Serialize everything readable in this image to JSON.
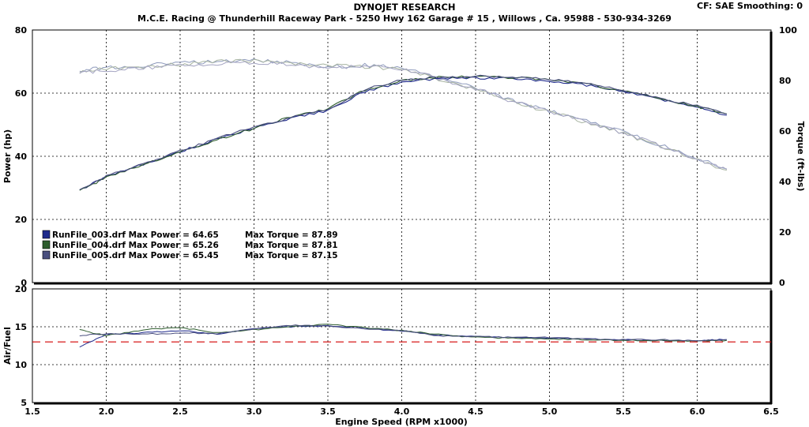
{
  "header": {
    "title": "DYNOJET RESEARCH",
    "subtitle": "M.C.E. Racing  @  Thunderhill  Raceway Park  - 5250  Hwy 162  Garage # 15  , Willows  , Ca. 95988 - 530-934-3269",
    "correction": "CF: SAE  Smoothing: 0"
  },
  "colors": {
    "run003": "#1f2a8c",
    "run004": "#2e5d2e",
    "run005": "#4a4f7e",
    "torque003": "#8f9bbd",
    "torque004": "#a6b3a0",
    "torque005": "#a4a4c2",
    "af_target": "#d40000",
    "grid": "#000000"
  },
  "chart_data": [
    {
      "type": "line",
      "name": "power-torque",
      "xlabel": "Engine Speed (RPM x1000)",
      "ylabel": "Power (hp)",
      "y2label": "Torque (ft-lbs)",
      "xlim": [
        1.5,
        6.5
      ],
      "ylim": [
        0,
        80
      ],
      "y2lim": [
        0,
        100
      ],
      "xticks": [
        "1.5",
        "2.0",
        "2.5",
        "3.0",
        "3.5",
        "4.0",
        "4.5",
        "5.0",
        "5.5",
        "6.0",
        "6.5"
      ],
      "yticks": [
        "0",
        "20",
        "40",
        "60",
        "80"
      ],
      "y2ticks": [
        "0",
        "20",
        "40",
        "60",
        "80",
        "100"
      ],
      "x": [
        1.82,
        2.0,
        2.25,
        2.5,
        2.75,
        3.0,
        3.25,
        3.5,
        3.75,
        4.0,
        4.25,
        4.5,
        4.75,
        5.0,
        5.25,
        5.5,
        5.75,
        6.0,
        6.2
      ],
      "series": [
        {
          "name": "RunFile_003.drf Max Power = 64.65",
          "axis": "power",
          "values": [
            29.2,
            33.5,
            37.5,
            41.5,
            45.5,
            49.0,
            52.0,
            54.5,
            60.5,
            63.5,
            64.6,
            64.8,
            64.6,
            63.8,
            62.5,
            60.5,
            58.0,
            55.5,
            53.0
          ]
        },
        {
          "name": "RunFile_004.drf Max Power = 65.26",
          "axis": "power",
          "values": [
            29.0,
            33.3,
            37.3,
            41.3,
            45.3,
            48.8,
            52.5,
            55.0,
            61.0,
            64.0,
            65.0,
            65.2,
            65.0,
            64.2,
            62.8,
            60.8,
            58.2,
            55.7,
            53.4
          ]
        },
        {
          "name": "RunFile_005.drf Max Power = 65.45",
          "axis": "power",
          "values": [
            29.3,
            33.6,
            37.6,
            41.6,
            45.6,
            49.2,
            52.2,
            54.8,
            61.2,
            64.2,
            65.1,
            65.4,
            65.2,
            64.4,
            63.0,
            61.0,
            58.4,
            55.9,
            53.4
          ]
        },
        {
          "name": "RunFile_003.drf Max Torque = 87.89",
          "axis": "torque",
          "values": [
            84.0,
            85.0,
            86.0,
            87.0,
            87.5,
            87.9,
            87.0,
            85.5,
            86.0,
            85.0,
            81.0,
            77.0,
            72.0,
            68.0,
            64.0,
            59.5,
            54.5,
            49.0,
            45.0
          ]
        },
        {
          "name": "RunFile_004.drf Max Torque = 87.81",
          "axis": "torque",
          "values": [
            83.5,
            84.5,
            85.5,
            86.5,
            87.5,
            87.8,
            86.8,
            86.0,
            85.5,
            84.5,
            80.5,
            76.5,
            71.5,
            67.5,
            63.5,
            59.0,
            54.0,
            48.5,
            44.5
          ]
        },
        {
          "name": "RunFile_005.drf Max Torque = 87.15",
          "axis": "torque",
          "values": [
            83.0,
            84.0,
            85.0,
            86.0,
            86.8,
            87.1,
            86.5,
            85.0,
            85.8,
            84.8,
            80.8,
            76.8,
            71.8,
            67.8,
            63.8,
            59.2,
            54.2,
            48.8,
            44.8
          ]
        }
      ],
      "legend": [
        {
          "run": "RunFile_003.drf Max Power = 64.65",
          "torque": "Max Torque = 87.89"
        },
        {
          "run": "RunFile_004.drf Max Power = 65.26",
          "torque": "Max Torque = 87.81"
        },
        {
          "run": "RunFile_005.drf Max Power = 65.45",
          "torque": "Max Torque = 87.15"
        }
      ],
      "legend_position": "lower-left",
      "grid": true
    },
    {
      "type": "line",
      "name": "air-fuel",
      "xlabel": "Engine Speed (RPM x1000)",
      "ylabel": "Air/Fuel",
      "xlim": [
        1.5,
        6.5
      ],
      "ylim": [
        5,
        20
      ],
      "yticks": [
        "5",
        "10",
        "15",
        "20"
      ],
      "target_afr": 13.0,
      "x": [
        1.82,
        2.0,
        2.25,
        2.5,
        2.75,
        3.0,
        3.25,
        3.5,
        3.75,
        4.0,
        4.25,
        4.5,
        4.75,
        5.0,
        5.25,
        5.5,
        5.75,
        6.0,
        6.2
      ],
      "series": [
        {
          "name": "RunFile_003.drf",
          "values": [
            12.3,
            14.0,
            14.2,
            14.5,
            14.0,
            14.8,
            15.0,
            15.1,
            14.8,
            14.4,
            13.9,
            13.7,
            13.6,
            13.5,
            13.4,
            13.3,
            13.2,
            13.2,
            13.3
          ]
        },
        {
          "name": "RunFile_004.drf",
          "values": [
            14.6,
            13.8,
            14.6,
            14.9,
            14.2,
            14.6,
            15.1,
            15.3,
            14.9,
            14.5,
            14.0,
            13.6,
            13.5,
            13.4,
            13.3,
            13.2,
            13.2,
            13.1,
            13.2
          ]
        },
        {
          "name": "RunFile_005.drf",
          "values": [
            13.8,
            14.1,
            14.0,
            14.2,
            14.1,
            14.7,
            15.2,
            15.1,
            14.7,
            14.5,
            13.8,
            13.7,
            13.6,
            13.6,
            13.4,
            13.3,
            13.3,
            13.2,
            13.3
          ]
        }
      ],
      "grid": true
    }
  ]
}
